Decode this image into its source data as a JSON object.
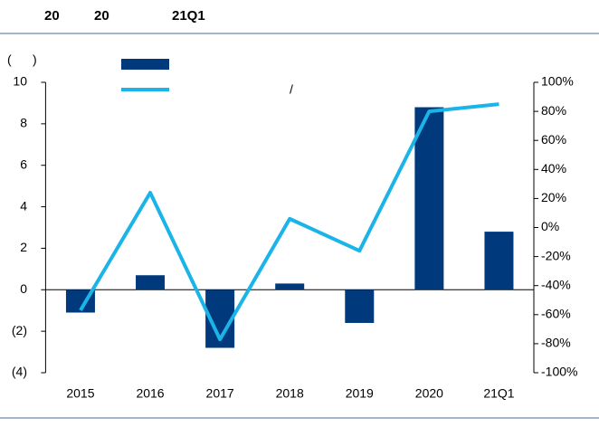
{
  "chart_data": {
    "type": "bar_line",
    "title_parts": [
      "20",
      "20",
      "21Q1"
    ],
    "y_label": "(      )",
    "annotation": "/",
    "categories": [
      "2015",
      "2016",
      "2017",
      "2018",
      "2019",
      "2020",
      "21Q1"
    ],
    "series": [
      {
        "type": "bar",
        "color": "#003a7d",
        "values": [
          -1.1,
          0.7,
          -2.8,
          0.3,
          -1.6,
          8.8,
          2.8
        ]
      },
      {
        "type": "line",
        "axis": "y2",
        "color": "#1ab4e8",
        "values": [
          -57,
          24,
          -77,
          6,
          -16,
          80,
          85
        ]
      }
    ],
    "ylim": [
      -4,
      10
    ],
    "yticks": [
      {
        "value": -4,
        "label": "(4)"
      },
      {
        "value": -2,
        "label": "(2)"
      },
      0,
      2,
      4,
      6,
      8,
      10
    ],
    "y2lim": [
      -100,
      100
    ],
    "y2ticks": [
      {
        "value": -100,
        "label": "-100%"
      },
      {
        "value": -80,
        "label": "-80%"
      },
      {
        "value": -60,
        "label": "-60%"
      },
      {
        "value": -40,
        "label": "-40%"
      },
      {
        "value": -20,
        "label": "-20%"
      },
      {
        "value": 0,
        "label": "0%"
      },
      {
        "value": 20,
        "label": "20%"
      },
      {
        "value": 40,
        "label": "40%"
      },
      {
        "value": 60,
        "label": "60%"
      },
      {
        "value": 80,
        "label": "80%"
      },
      {
        "value": 100,
        "label": "100%"
      }
    ]
  }
}
